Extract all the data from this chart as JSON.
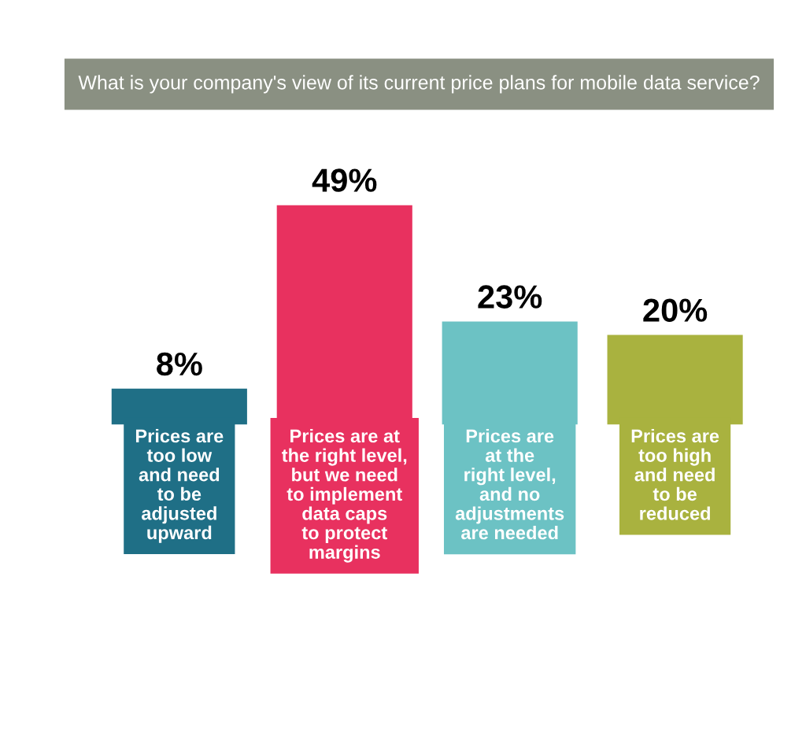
{
  "chart_data": {
    "type": "bar",
    "title": "What is your company's view of its current price plans for mobile data service?",
    "categories": [
      "Prices are\ntoo low\nand need\nto be\nadjusted\nupward",
      "Prices are at\nthe right level,\nbut we need\nto implement\ndata caps\nto protect\nmargins",
      "Prices are\nat the\nright level,\nand no\nadjustments\nare needed",
      "Prices are\ntoo high\nand need\nto be\nreduced"
    ],
    "values": [
      8,
      49,
      23,
      20
    ],
    "colors": [
      "#1f6f86",
      "#e8315f",
      "#6cc2c4",
      "#a9b23f"
    ],
    "value_labels": [
      "8%",
      "49%",
      "23%",
      "20%"
    ]
  }
}
